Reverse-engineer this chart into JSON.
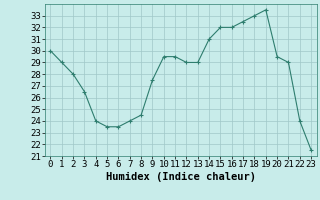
{
  "x": [
    0,
    1,
    2,
    3,
    4,
    5,
    6,
    7,
    8,
    9,
    10,
    11,
    12,
    13,
    14,
    15,
    16,
    17,
    18,
    19,
    20,
    21,
    22,
    23
  ],
  "y": [
    30,
    29,
    28,
    26.5,
    24,
    23.5,
    23.5,
    24,
    24.5,
    27.5,
    29.5,
    29.5,
    29,
    29,
    31,
    32,
    32,
    32.5,
    33,
    33.5,
    29.5,
    29,
    24,
    21.5
  ],
  "line_color": "#2e7d6e",
  "marker": "+",
  "bg_color": "#c8ecea",
  "grid_color": "#a0c8c8",
  "ylabel_values": [
    21,
    22,
    23,
    24,
    25,
    26,
    27,
    28,
    29,
    30,
    31,
    32,
    33
  ],
  "xlabel_values": [
    0,
    1,
    2,
    3,
    4,
    5,
    6,
    7,
    8,
    9,
    10,
    11,
    12,
    13,
    14,
    15,
    16,
    17,
    18,
    19,
    20,
    21,
    22,
    23
  ],
  "xlabel": "Humidex (Indice chaleur)",
  "ylim": [
    21,
    34
  ],
  "xlim": [
    -0.5,
    23.5
  ],
  "label_fontsize": 6.5,
  "xlabel_fontsize": 7.5
}
